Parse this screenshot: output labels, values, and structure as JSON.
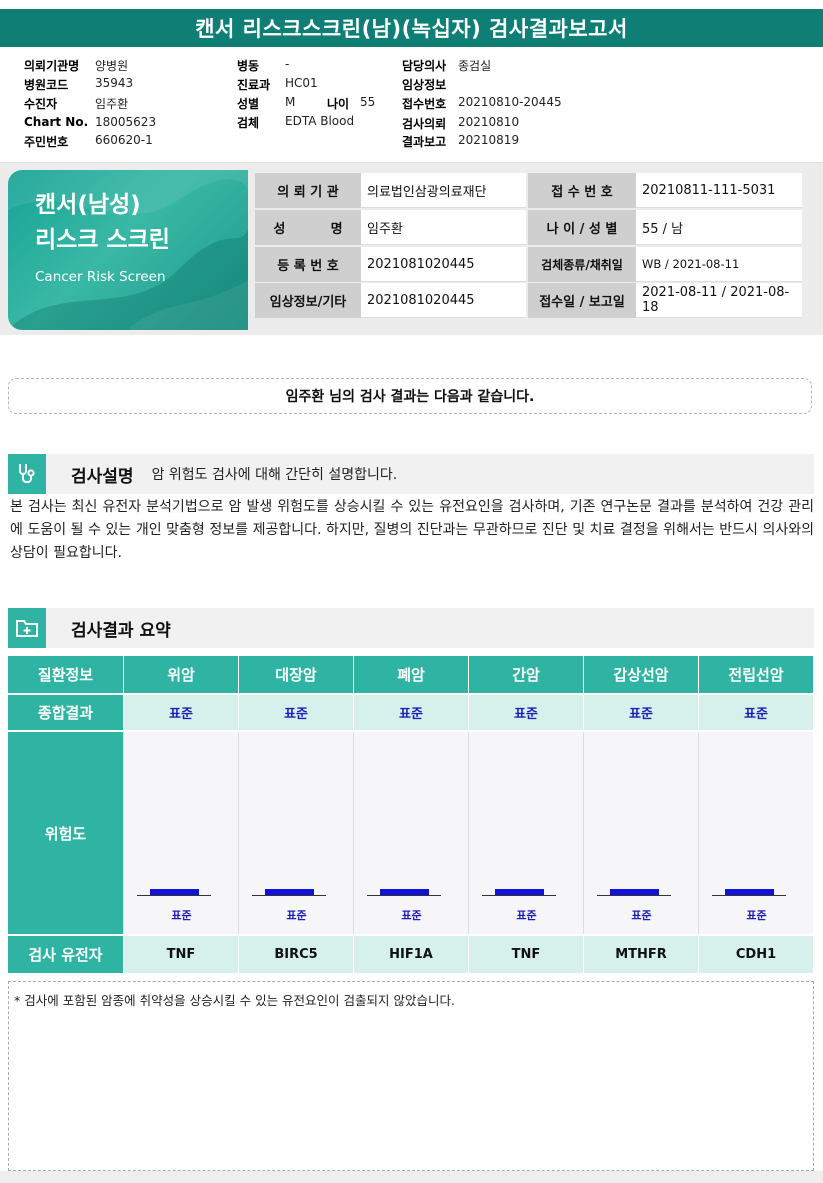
{
  "report_title": "캔서 리스크스크린(남)(녹십자) 검사결과보고서",
  "info": {
    "col1": [
      {
        "label": "의뢰기관명",
        "value": "양병원"
      },
      {
        "label": "병원코드",
        "value": "35943"
      },
      {
        "label": "수진자",
        "value": "임주환"
      },
      {
        "label": "Chart No.",
        "value": "18005623"
      },
      {
        "label": "주민번호",
        "value": "660620-1"
      }
    ],
    "col2": [
      {
        "label": "병동",
        "value": "-"
      },
      {
        "label": "진료과",
        "value": "HC01"
      },
      {
        "label": "성별",
        "value": "M"
      },
      {
        "label": "검체",
        "value": "EDTA Blood"
      }
    ],
    "age": {
      "label": "나이",
      "value": "55"
    },
    "col3": [
      {
        "label": "담당의사",
        "value": "종검실"
      },
      {
        "label": "임상정보",
        "value": ""
      },
      {
        "label": "접수번호",
        "value": "20210810-20445"
      },
      {
        "label": "검사의뢰",
        "value": "20210810"
      },
      {
        "label": "결과보고",
        "value": "20210819"
      }
    ]
  },
  "hero": {
    "line1": "캔서(남성)",
    "line2": "리스크 스크린",
    "subtitle": "Cancer Risk Screen"
  },
  "grid": [
    {
      "l1": "의 뢰 기 관",
      "v1": "의료법인삼광의료재단",
      "l2": "접 수 번 호",
      "v2": "20210811-111-5031"
    },
    {
      "l1": "성          명",
      "v1": "임주환",
      "l2": "나 이 / 성 별",
      "v2": "55 / 남"
    },
    {
      "l1": "등 록 번 호",
      "v1": "2021081020445",
      "l2": "검체종류/채취일",
      "v2": "WB / 2021-08-11"
    },
    {
      "l1": "임상정보/기타",
      "v1": "2021081020445",
      "l2": "접수일 / 보고일",
      "v2": "2021-08-11 / 2021-08-18"
    }
  ],
  "banner": "임주환 님의 검사 결과는 다음과 같습니다.",
  "section1": {
    "title": "검사설명",
    "subtitle": "암 위험도 검사에 대해 간단히 설명합니다.",
    "body": "본 검사는 최신 유전자 분석기법으로 암 발생 위험도를 상승시킬 수 있는 유전요인을 검사하며, 기존 연구논문 결과를 분석하여 건강 관리에 도움이 될 수 있는 개인 맞춤형 정보를 제공합니다. 하지만, 질병의 진단과는 무관하므로 진단 및 치료 결정을 위해서는 반드시 의사와의 상담이 필요합니다."
  },
  "section2": {
    "title": "검사결과 요약"
  },
  "results": {
    "row_labels": {
      "header": "질환정보",
      "summary": "종합결과",
      "risk": "위험도",
      "gene": "검사 유전자"
    },
    "cancers": [
      {
        "name": "위암",
        "summary": "표준",
        "risk_label": "표준",
        "gene": "TNF"
      },
      {
        "name": "대장암",
        "summary": "표준",
        "risk_label": "표준",
        "gene": "BIRC5"
      },
      {
        "name": "폐암",
        "summary": "표준",
        "risk_label": "표준",
        "gene": "HIF1A"
      },
      {
        "name": "간암",
        "summary": "표준",
        "risk_label": "표준",
        "gene": "TNF"
      },
      {
        "name": "갑상선암",
        "summary": "표준",
        "risk_label": "표준",
        "gene": "MTHFR"
      },
      {
        "name": "전립선암",
        "summary": "표준",
        "risk_label": "표준",
        "gene": "CDH1"
      }
    ]
  },
  "note": "* 검사에 포함된 암종에 취약성을 상승시킬 수 있는 유전요인이 검출되지 않았습니다.",
  "colors": {
    "brand": "#0f7f76",
    "accent": "#2fb3a3",
    "light": "#d6f1ec",
    "gauge": "#1212d6"
  },
  "icons": [
    "stethoscope-icon",
    "folder-plus-icon"
  ]
}
